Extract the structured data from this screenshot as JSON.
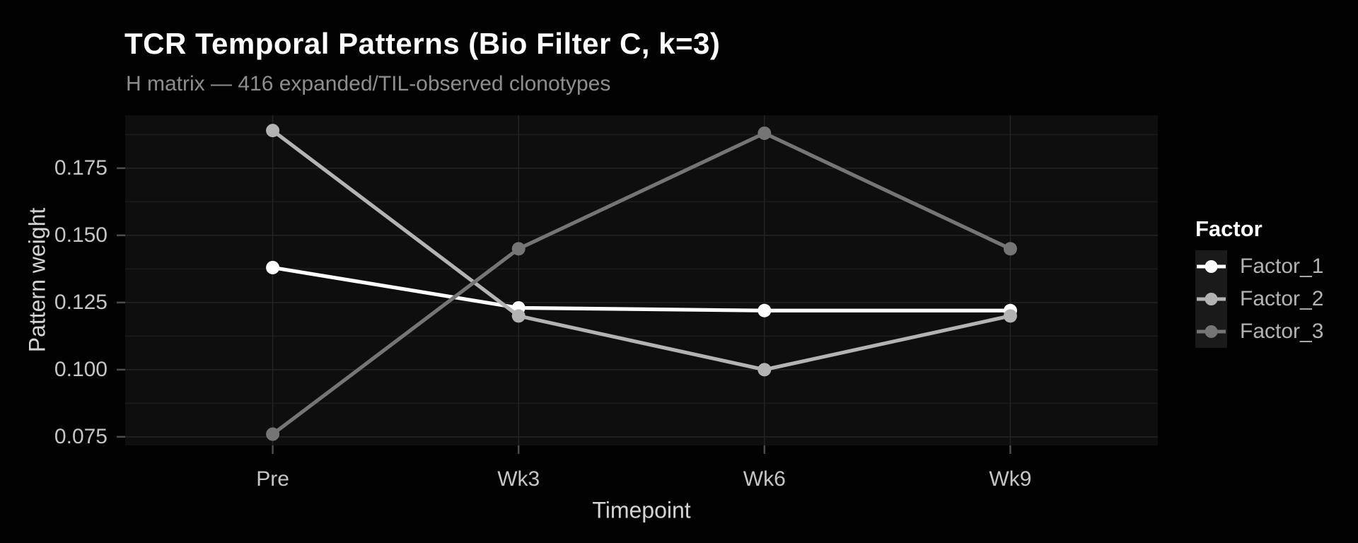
{
  "chart_data": {
    "type": "line",
    "title": "TCR Temporal Patterns (Bio Filter C, k=3)",
    "subtitle": "H matrix — 416 expanded/TIL-observed clonotypes",
    "xlabel": "Timepoint",
    "ylabel": "Pattern weight",
    "categories": [
      "Pre",
      "Wk3",
      "Wk6",
      "Wk9"
    ],
    "series": [
      {
        "name": "Factor_1",
        "color": "#ffffff",
        "values": [
          0.138,
          0.123,
          0.122,
          0.122
        ]
      },
      {
        "name": "Factor_2",
        "color": "#b3b3b3",
        "values": [
          0.189,
          0.12,
          0.1,
          0.12
        ]
      },
      {
        "name": "Factor_3",
        "color": "#757575",
        "values": [
          0.076,
          0.145,
          0.188,
          0.145
        ]
      }
    ],
    "y_ticks": [
      0.075,
      0.1,
      0.125,
      0.15,
      0.175
    ],
    "y_tick_format_decimals": 3,
    "ylim": [
      0.0718,
      0.1947
    ],
    "legend_title": "Factor",
    "legend_position": "right",
    "grid": "major+minor"
  },
  "colors": {
    "page_bg": "#020202",
    "panel_bg": "#0e0e0e",
    "grid_major": "#242424",
    "grid_minor": "#1c1c1c",
    "axis_tick": "#4d4d4d",
    "tick_text": "#c5c5c5",
    "axis_title_text": "#d4d4d4",
    "title_text": "#ffffff",
    "subtitle_text": "#8e8e8e",
    "legend_key_bg": "#1a1a1a",
    "legend_label_text": "#b3b3b3"
  }
}
